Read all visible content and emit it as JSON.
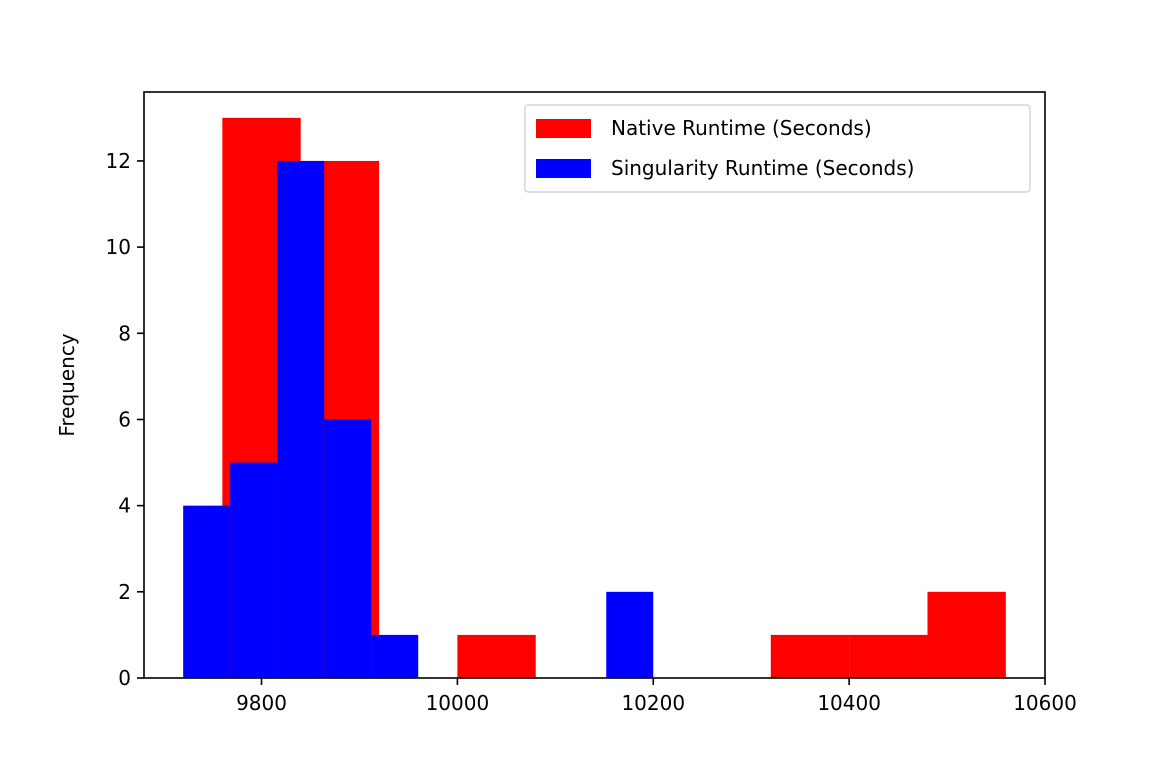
{
  "chart_data": {
    "type": "histogram",
    "title": "",
    "xlabel": "",
    "ylabel": "Frequency",
    "xlim": [
      9680,
      10600
    ],
    "ylim": [
      0,
      13.6
    ],
    "xticks": [
      9800,
      10000,
      10200,
      10400,
      10600
    ],
    "yticks": [
      0,
      2,
      4,
      6,
      8,
      10,
      12
    ],
    "grid": false,
    "legend_position": "top-right",
    "series": [
      {
        "name": "Native Runtime (Seconds)",
        "color": "#ff0000",
        "bins": [
          {
            "x0": 9760,
            "x1": 9840,
            "count": 13
          },
          {
            "x0": 9840,
            "x1": 9920,
            "count": 12
          },
          {
            "x0": 9920,
            "x1": 10000,
            "count": 0
          },
          {
            "x0": 10000,
            "x1": 10080,
            "count": 1
          },
          {
            "x0": 10080,
            "x1": 10160,
            "count": 0
          },
          {
            "x0": 10160,
            "x1": 10240,
            "count": 0
          },
          {
            "x0": 10240,
            "x1": 10320,
            "count": 0
          },
          {
            "x0": 10320,
            "x1": 10400,
            "count": 1
          },
          {
            "x0": 10400,
            "x1": 10480,
            "count": 1
          },
          {
            "x0": 10480,
            "x1": 10560,
            "count": 2
          }
        ]
      },
      {
        "name": "Singularity Runtime (Seconds)",
        "color": "#0000ff",
        "bins": [
          {
            "x0": 9720,
            "x1": 9768,
            "count": 4
          },
          {
            "x0": 9768,
            "x1": 9816,
            "count": 5
          },
          {
            "x0": 9816,
            "x1": 9864,
            "count": 12
          },
          {
            "x0": 9864,
            "x1": 9912,
            "count": 6
          },
          {
            "x0": 9912,
            "x1": 9960,
            "count": 1
          },
          {
            "x0": 9960,
            "x1": 10008,
            "count": 0
          },
          {
            "x0": 10008,
            "x1": 10056,
            "count": 0
          },
          {
            "x0": 10056,
            "x1": 10104,
            "count": 0
          },
          {
            "x0": 10104,
            "x1": 10152,
            "count": 0
          },
          {
            "x0": 10152,
            "x1": 10200,
            "count": 2
          }
        ]
      }
    ]
  }
}
